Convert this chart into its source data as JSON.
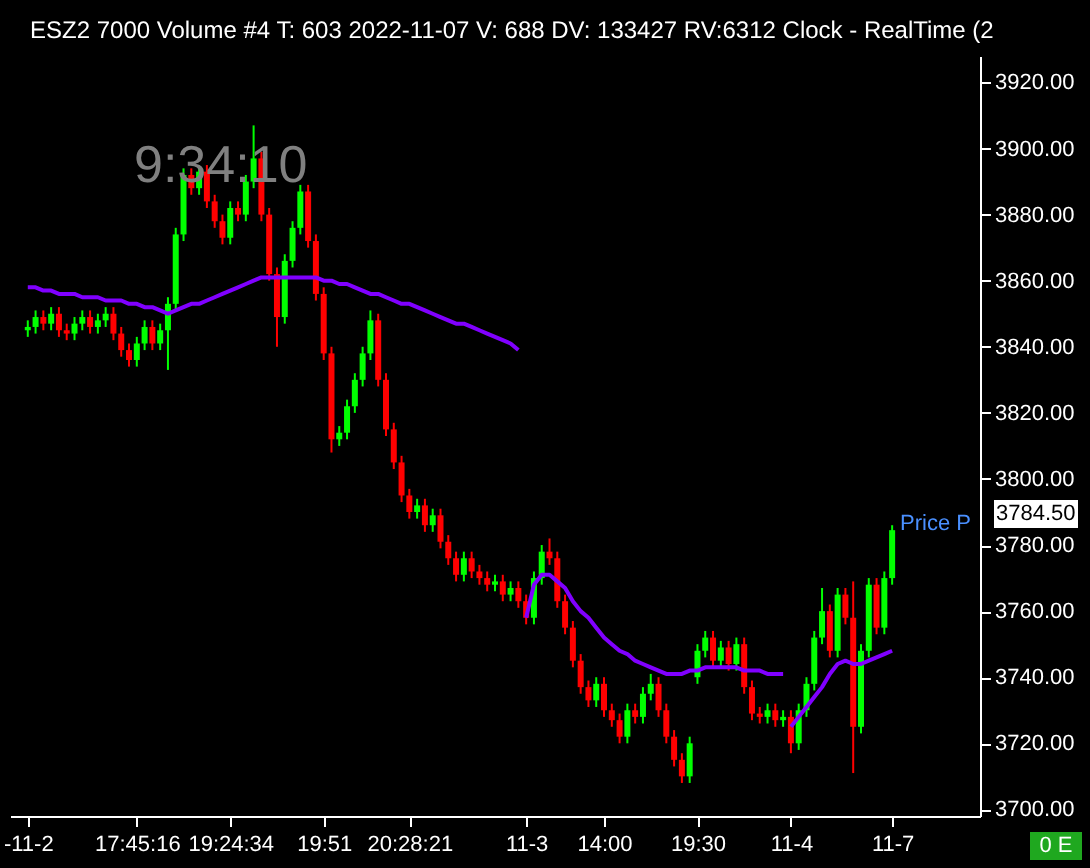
{
  "chart_data": {
    "type": "candlestick",
    "title": "ESZ2 7000 Volume #4 T: 603 2022-11-07 V: 688 DV: 133427 RV:6312 Clock - RealTime (2",
    "categories": [
      "-11-2",
      null,
      null,
      null,
      null,
      null,
      null,
      null,
      null,
      null,
      null,
      null,
      null,
      null,
      "17:45:16",
      null,
      null,
      null,
      null,
      null,
      null,
      null,
      null,
      null,
      null,
      null,
      "19:24:34",
      null,
      null,
      null,
      null,
      null,
      null,
      null,
      null,
      null,
      null,
      null,
      "19:51",
      null,
      null,
      null,
      null,
      null,
      null,
      null,
      null,
      null,
      null,
      "20:28:21",
      null,
      null,
      null,
      null,
      null,
      null,
      null,
      null,
      null,
      null,
      null,
      null,
      null,
      null,
      "11-3",
      null,
      null,
      null,
      null,
      null,
      null,
      null,
      null,
      null,
      "14:00",
      null,
      null,
      null,
      null,
      null,
      null,
      null,
      null,
      null,
      null,
      null,
      "19:30",
      null,
      null,
      null,
      null,
      null,
      null,
      null,
      null,
      null,
      null,
      null,
      "11-4",
      null,
      null,
      null,
      null,
      null,
      null,
      null,
      null,
      null,
      null,
      null,
      null,
      "11-7"
    ],
    "ohlc": [
      [
        3845,
        3848,
        3843,
        3846
      ],
      [
        3846,
        3851,
        3844,
        3849
      ],
      [
        3849,
        3851,
        3845,
        3847
      ],
      [
        3847,
        3852,
        3845,
        3850
      ],
      [
        3850,
        3852,
        3843,
        3845
      ],
      [
        3845,
        3847,
        3842,
        3844
      ],
      [
        3844,
        3849,
        3842,
        3847
      ],
      [
        3847,
        3851,
        3845,
        3849
      ],
      [
        3849,
        3851,
        3844,
        3846
      ],
      [
        3846,
        3850,
        3844,
        3848
      ],
      [
        3848,
        3852,
        3846,
        3850
      ],
      [
        3850,
        3852,
        3842,
        3844
      ],
      [
        3844,
        3846,
        3837,
        3839
      ],
      [
        3839,
        3841,
        3834,
        3836
      ],
      [
        3836,
        3843,
        3834,
        3841
      ],
      [
        3841,
        3848,
        3839,
        3846
      ],
      [
        3846,
        3848,
        3839,
        3841
      ],
      [
        3841,
        3847,
        3839,
        3845
      ],
      [
        3845,
        3855,
        3833,
        3853
      ],
      [
        3853,
        3876,
        3851,
        3874
      ],
      [
        3874,
        3894,
        3872,
        3892
      ],
      [
        3892,
        3894,
        3886,
        3888
      ],
      [
        3888,
        3895,
        3886,
        3893
      ],
      [
        3893,
        3895,
        3882,
        3884
      ],
      [
        3884,
        3886,
        3876,
        3878
      ],
      [
        3878,
        3880,
        3871,
        3873
      ],
      [
        3873,
        3884,
        3871,
        3882
      ],
      [
        3882,
        3884,
        3878,
        3880
      ],
      [
        3880,
        3892,
        3878,
        3890
      ],
      [
        3890,
        3907,
        3888,
        3897
      ],
      [
        3897,
        3899,
        3878,
        3880
      ],
      [
        3880,
        3882,
        3860,
        3862
      ],
      [
        3862,
        3864,
        3840,
        3849
      ],
      [
        3849,
        3868,
        3847,
        3866
      ],
      [
        3866,
        3878,
        3864,
        3876
      ],
      [
        3876,
        3889,
        3874,
        3887
      ],
      [
        3887,
        3889,
        3870,
        3872
      ],
      [
        3872,
        3874,
        3854,
        3856
      ],
      [
        3856,
        3858,
        3836,
        3838
      ],
      [
        3838,
        3840,
        3808,
        3812
      ],
      [
        3812,
        3816,
        3810,
        3814
      ],
      [
        3814,
        3824,
        3812,
        3822
      ],
      [
        3822,
        3832,
        3820,
        3830
      ],
      [
        3830,
        3840,
        3828,
        3838
      ],
      [
        3838,
        3851,
        3836,
        3848
      ],
      [
        3848,
        3850,
        3828,
        3830
      ],
      [
        3830,
        3832,
        3813,
        3815
      ],
      [
        3815,
        3817,
        3803,
        3805
      ],
      [
        3805,
        3807,
        3793,
        3795
      ],
      [
        3795,
        3797,
        3788,
        3790
      ],
      [
        3790,
        3794,
        3788,
        3792
      ],
      [
        3792,
        3794,
        3784,
        3786
      ],
      [
        3786,
        3791,
        3784,
        3789
      ],
      [
        3789,
        3791,
        3779,
        3781
      ],
      [
        3781,
        3783,
        3774,
        3776
      ],
      [
        3776,
        3778,
        3769,
        3771
      ],
      [
        3771,
        3778,
        3769,
        3776
      ],
      [
        3776,
        3778,
        3770,
        3772
      ],
      [
        3772,
        3774,
        3768,
        3770
      ],
      [
        3770,
        3772,
        3766,
        3768
      ],
      [
        3768,
        3771,
        3766,
        3769
      ],
      [
        3769,
        3771,
        3763,
        3765
      ],
      [
        3765,
        3769,
        3763,
        3767
      ],
      [
        3767,
        3769,
        3761,
        3763
      ],
      [
        3763,
        3765,
        3756,
        3758
      ],
      [
        3758,
        3772,
        3756,
        3770
      ],
      [
        3770,
        3780,
        3768,
        3778
      ],
      [
        3778,
        3782,
        3774,
        3776
      ],
      [
        3776,
        3778,
        3761,
        3763
      ],
      [
        3763,
        3765,
        3753,
        3755
      ],
      [
        3755,
        3757,
        3743,
        3745
      ],
      [
        3745,
        3747,
        3735,
        3737
      ],
      [
        3737,
        3739,
        3731,
        3733
      ],
      [
        3733,
        3740,
        3731,
        3738
      ],
      [
        3738,
        3740,
        3728,
        3730
      ],
      [
        3730,
        3732,
        3725,
        3727
      ],
      [
        3727,
        3729,
        3720,
        3722
      ],
      [
        3722,
        3732,
        3720,
        3730
      ],
      [
        3730,
        3732,
        3726,
        3728
      ],
      [
        3728,
        3737,
        3726,
        3735
      ],
      [
        3735,
        3741,
        3733,
        3738
      ],
      [
        3738,
        3740,
        3728,
        3730
      ],
      [
        3730,
        3732,
        3720,
        3722
      ],
      [
        3722,
        3724,
        3713,
        3715
      ],
      [
        3715,
        3717,
        3708,
        3710
      ],
      [
        3710,
        3722,
        3708,
        3720
      ],
      [
        3740,
        3750,
        3738,
        3748
      ],
      [
        3748,
        3754,
        3746,
        3752
      ],
      [
        3752,
        3754,
        3743,
        3745
      ],
      [
        3745,
        3751,
        3743,
        3749
      ],
      [
        3749,
        3751,
        3742,
        3744
      ],
      [
        3744,
        3752,
        3742,
        3750
      ],
      [
        3750,
        3752,
        3735,
        3737
      ],
      [
        3737,
        3739,
        3727,
        3729
      ],
      [
        3729,
        3731,
        3726,
        3728
      ],
      [
        3728,
        3732,
        3726,
        3730
      ],
      [
        3730,
        3732,
        3725,
        3727
      ],
      [
        3727,
        3730,
        3725,
        3728
      ],
      [
        3728,
        3730,
        3717,
        3720
      ],
      [
        3720,
        3732,
        3718,
        3730
      ],
      [
        3730,
        3740,
        3728,
        3738
      ],
      [
        3738,
        3754,
        3736,
        3752
      ],
      [
        3752,
        3767,
        3750,
        3760
      ],
      [
        3760,
        3762,
        3746,
        3748
      ],
      [
        3748,
        3767,
        3746,
        3765
      ],
      [
        3765,
        3767,
        3756,
        3758
      ],
      [
        3758,
        3769,
        3711,
        3725
      ],
      [
        3725,
        3750,
        3723,
        3748
      ],
      [
        3748,
        3770,
        3746,
        3768
      ],
      [
        3768,
        3770,
        3753,
        3755
      ],
      [
        3755,
        3772,
        3753,
        3770
      ],
      [
        3770,
        3786,
        3768,
        3784.5
      ]
    ],
    "colors": [
      "#00ff00",
      "#00ff00",
      "#ff0000",
      "#00ff00",
      "#ff0000",
      "#ff0000",
      "#00ff00",
      "#00ff00",
      "#ff0000",
      "#00ff00",
      "#00ff00",
      "#ff0000",
      "#ff0000",
      "#ff0000",
      "#00ff00",
      "#00ff00",
      "#ff0000",
      "#00ff00",
      "#00ff00",
      "#00ff00",
      "#00ff00",
      "#ff0000",
      "#00ff00",
      "#ff0000",
      "#ff0000",
      "#ff0000",
      "#00ff00",
      "#ff0000",
      "#00ff00",
      "#00ff00",
      "#ff0000",
      "#ff0000",
      "#ff0000",
      "#00ff00",
      "#00ff00",
      "#00ff00",
      "#ff0000",
      "#ff0000",
      "#ff0000",
      "#ff0000",
      "#00ff00",
      "#00ff00",
      "#00ff00",
      "#00ff00",
      "#00ff00",
      "#ff0000",
      "#ff0000",
      "#ff0000",
      "#ff0000",
      "#ff0000",
      "#00ff00",
      "#ff0000",
      "#00ff00",
      "#ff0000",
      "#ff0000",
      "#ff0000",
      "#00ff00",
      "#ff0000",
      "#ff0000",
      "#ff0000",
      "#00ff00",
      "#ff0000",
      "#00ff00",
      "#ff0000",
      "#ff0000",
      "#00ff00",
      "#00ff00",
      "#ff0000",
      "#ff0000",
      "#ff0000",
      "#ff0000",
      "#ff0000",
      "#ff0000",
      "#00ff00",
      "#ff0000",
      "#ff0000",
      "#ff0000",
      "#00ff00",
      "#ff0000",
      "#00ff00",
      "#00ff00",
      "#ff0000",
      "#ff0000",
      "#ff0000",
      "#ff0000",
      "#00ff00",
      "#00ff00",
      "#00ff00",
      "#ff0000",
      "#00ff00",
      "#ff0000",
      "#00ff00",
      "#ff0000",
      "#ff0000",
      "#ff0000",
      "#00ff00",
      "#ff0000",
      "#00ff00",
      "#ff0000",
      "#00ff00",
      "#00ff00",
      "#00ff00",
      "#00ff00",
      "#ff0000",
      "#00ff00",
      "#ff0000",
      "#ff0000",
      "#00ff00",
      "#00ff00",
      "#ff0000",
      "#00ff00",
      "#00ff00"
    ],
    "series": [
      {
        "type": "line",
        "color": "#8000ff",
        "values": [
          3858,
          3858,
          3857,
          3857,
          3856,
          3856,
          3856,
          3855,
          3855,
          3855,
          3854,
          3854,
          3854,
          3853,
          3853,
          3852,
          3852,
          3851,
          3850,
          3851,
          3852,
          3853,
          3853,
          3854,
          3855,
          3856,
          3857,
          3858,
          3859,
          3860,
          3861,
          3861,
          3861,
          3861,
          3861,
          3861,
          3861,
          3861,
          3860,
          3860,
          3859,
          3859,
          3858,
          3857,
          3856,
          3856,
          3855,
          3854,
          3853,
          3853,
          3852,
          3851,
          3850,
          3849,
          3848,
          3847,
          3847,
          3846,
          3845,
          3844,
          3843,
          3842,
          3841,
          3839,
          null,
          null,
          null,
          null,
          null,
          null,
          null,
          null,
          null,
          null,
          null,
          null,
          null,
          null,
          null,
          null,
          null,
          null,
          null,
          null,
          null,
          null,
          null,
          null,
          null,
          null,
          null,
          null,
          null,
          null,
          null,
          null,
          null,
          null,
          null,
          null,
          null,
          null,
          null,
          null,
          null,
          null,
          null,
          null,
          null,
          null,
          null,
          null
        ]
      },
      {
        "type": "line",
        "color": "#8000ff",
        "values": [
          null,
          null,
          null,
          null,
          null,
          null,
          null,
          null,
          null,
          null,
          null,
          null,
          null,
          null,
          null,
          null,
          null,
          null,
          null,
          null,
          null,
          null,
          null,
          null,
          null,
          null,
          null,
          null,
          null,
          null,
          null,
          null,
          null,
          null,
          null,
          null,
          null,
          null,
          null,
          null,
          null,
          null,
          null,
          null,
          null,
          null,
          null,
          null,
          null,
          null,
          null,
          null,
          null,
          null,
          null,
          null,
          null,
          null,
          null,
          null,
          null,
          null,
          null,
          null,
          3758,
          3768,
          3771,
          3771,
          3769,
          3767,
          3763,
          3760,
          3758,
          3755,
          3752,
          3750,
          3748,
          3747,
          3745,
          3744,
          3743,
          3742,
          3741,
          3741,
          3741,
          3742,
          3742,
          3743,
          3743,
          3743,
          3743,
          3743,
          3742,
          3742,
          3742,
          3741,
          3741,
          3741,
          null,
          null,
          null,
          null,
          null,
          null,
          null,
          null,
          null,
          null,
          null,
          null,
          null,
          null
        ]
      },
      {
        "type": "line",
        "color": "#8000ff",
        "values": [
          null,
          null,
          null,
          null,
          null,
          null,
          null,
          null,
          null,
          null,
          null,
          null,
          null,
          null,
          null,
          null,
          null,
          null,
          null,
          null,
          null,
          null,
          null,
          null,
          null,
          null,
          null,
          null,
          null,
          null,
          null,
          null,
          null,
          null,
          null,
          null,
          null,
          null,
          null,
          null,
          null,
          null,
          null,
          null,
          null,
          null,
          null,
          null,
          null,
          null,
          null,
          null,
          null,
          null,
          null,
          null,
          null,
          null,
          null,
          null,
          null,
          null,
          null,
          null,
          null,
          null,
          null,
          null,
          null,
          null,
          null,
          null,
          null,
          null,
          null,
          null,
          null,
          null,
          null,
          null,
          null,
          null,
          null,
          null,
          null,
          null,
          null,
          null,
          null,
          null,
          null,
          null,
          null,
          null,
          null,
          null,
          null,
          null,
          3725,
          3728,
          3731,
          3734,
          3737,
          3741,
          3744,
          3745,
          3744,
          3744,
          3745,
          3746,
          3747,
          3748
        ]
      }
    ],
    "ylim": [
      3698,
      3928
    ],
    "yticks": [
      {
        "value": 3700,
        "label": "3700.00"
      },
      {
        "value": 3720,
        "label": "3720.00"
      },
      {
        "value": 3740,
        "label": "3740.00"
      },
      {
        "value": 3760,
        "label": "3760.00"
      },
      {
        "value": 3780,
        "label": "3780.00"
      },
      {
        "value": 3800,
        "label": "3800.00"
      },
      {
        "value": 3820,
        "label": "3820.00"
      },
      {
        "value": 3840,
        "label": "3840.00"
      },
      {
        "value": 3860,
        "label": "3860.00"
      },
      {
        "value": 3880,
        "label": "3880.00"
      },
      {
        "value": 3900,
        "label": "3900.00"
      },
      {
        "value": 3920,
        "label": "3920.00"
      }
    ],
    "annotations": [
      "9:34:10",
      "Price P",
      "3784.50",
      "0 E"
    ]
  }
}
